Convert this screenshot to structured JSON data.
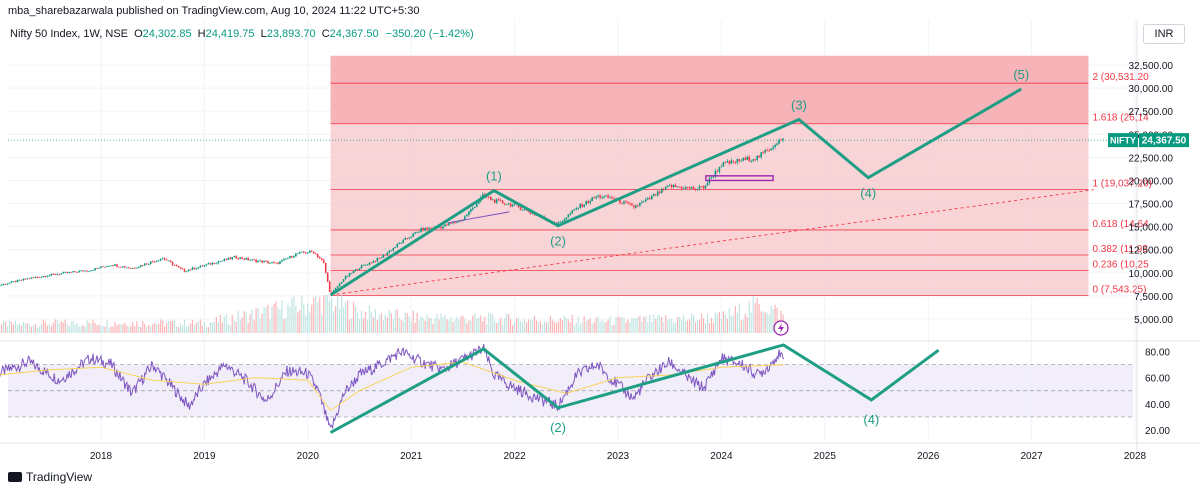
{
  "header": {
    "published": "mba_sharebazarwala published on TradingView.com, Aug 10, 2024 11:22 UTC+5:30",
    "symbol": "Nifty 50 Index, 1W, NSE",
    "o_label": "O",
    "o": "24,302.85",
    "h_label": "H",
    "h": "24,419.75",
    "l_label": "L",
    "l": "23,893.70",
    "c_label": "C",
    "c": "24,367.50",
    "change": "−350.20 (−1.42%)"
  },
  "currency": "INR",
  "footer": {
    "brand": "TradingView"
  },
  "chart_data": [
    {
      "type": "candlestick",
      "panel": "price",
      "symbol_tag": "NIFTY",
      "last_price_label": "24,367.50",
      "last_price": 24367.5,
      "y_ticks": [
        5000,
        7500,
        10000,
        12500,
        15000,
        17500,
        20000,
        22500,
        25000,
        27500,
        30000,
        32500
      ],
      "y_tick_labels": [
        "5,000.00",
        "7,500.00",
        "10,000.00",
        "12,500.00",
        "15,000.00",
        "17,500.00",
        "20,000.00",
        "22,500.00",
        "25,000.00",
        "27,500.00",
        "30,000.00",
        "32,500.00"
      ],
      "x_ticks": [
        "2018",
        "2019",
        "2020",
        "2021",
        "2022",
        "2023",
        "2024",
        "2025",
        "2026",
        "2027",
        "2028"
      ],
      "price_path": [
        [
          2017.0,
          8600
        ],
        [
          2017.3,
          9400
        ],
        [
          2017.6,
          9900
        ],
        [
          2017.9,
          10300
        ],
        [
          2018.1,
          10900
        ],
        [
          2018.3,
          10500
        ],
        [
          2018.6,
          11600
        ],
        [
          2018.8,
          10200
        ],
        [
          2019.0,
          10800
        ],
        [
          2019.3,
          11700
        ],
        [
          2019.5,
          11300
        ],
        [
          2019.7,
          11000
        ],
        [
          2019.9,
          12100
        ],
        [
          2020.05,
          12300
        ],
        [
          2020.15,
          11200
        ],
        [
          2020.22,
          7600
        ],
        [
          2020.35,
          9400
        ],
        [
          2020.5,
          10600
        ],
        [
          2020.7,
          11600
        ],
        [
          2020.9,
          13300
        ],
        [
          2021.1,
          14700
        ],
        [
          2021.3,
          15000
        ],
        [
          2021.5,
          15800
        ],
        [
          2021.7,
          18400
        ],
        [
          2021.8,
          17800
        ],
        [
          2022.0,
          17300
        ],
        [
          2022.2,
          16300
        ],
        [
          2022.42,
          15300
        ],
        [
          2022.6,
          17000
        ],
        [
          2022.8,
          18300
        ],
        [
          2022.95,
          18100
        ],
        [
          2023.15,
          17100
        ],
        [
          2023.3,
          18000
        ],
        [
          2023.5,
          19400
        ],
        [
          2023.75,
          19100
        ],
        [
          2023.83,
          19300
        ],
        [
          2024.0,
          21700
        ],
        [
          2024.2,
          22200
        ],
        [
          2024.35,
          22500
        ],
        [
          2024.45,
          23300
        ],
        [
          2024.55,
          24300
        ],
        [
          2024.61,
          24367.5
        ]
      ],
      "volume_path": [
        [
          2017.0,
          0.25
        ],
        [
          2018.0,
          0.3
        ],
        [
          2019.0,
          0.28
        ],
        [
          2020.2,
          0.95
        ],
        [
          2020.5,
          0.6
        ],
        [
          2021.0,
          0.45
        ],
        [
          2022.0,
          0.4
        ],
        [
          2023.0,
          0.35
        ],
        [
          2024.0,
          0.45
        ],
        [
          2024.4,
          0.85
        ],
        [
          2024.6,
          0.5
        ]
      ],
      "fibonacci": {
        "levels": [
          {
            "ratio": "0",
            "label": "0 (7,543.25)",
            "price": 7543.25
          },
          {
            "ratio": "0.236",
            "label": "0.236 (10,25",
            "price": 10250
          },
          {
            "ratio": "0.382",
            "label": "0.382 (11,93",
            "price": 11930
          },
          {
            "ratio": "0.618",
            "label": "0.618 (14,64",
            "price": 14640
          },
          {
            "ratio": "1",
            "label": "1 (19,037.20)",
            "price": 19037.2
          },
          {
            "ratio": "1.618",
            "label": "1.618 (26,14",
            "price": 26140
          },
          {
            "ratio": "2",
            "label": "2 (30,531.20",
            "price": 30531.2
          }
        ],
        "x_start": 2020.22,
        "x_end": 2027.55,
        "top_price": 33500,
        "colors": {
          "base": "#f7c6c9",
          "upper": "#f5b0b4",
          "line": "#f23645",
          "text": "#f23645"
        }
      },
      "elliott_wave": {
        "color": "#1e9e84",
        "points": [
          {
            "label": "",
            "x": 2020.22,
            "y": 7600
          },
          {
            "label": "(1)",
            "x": 2021.8,
            "y": 18900
          },
          {
            "label": "(2)",
            "x": 2022.42,
            "y": 15100
          },
          {
            "label": "(3)",
            "x": 2024.75,
            "y": 26600
          },
          {
            "label": "(4)",
            "x": 2025.42,
            "y": 20300
          },
          {
            "label": "(5)",
            "x": 2026.9,
            "y": 29900
          }
        ]
      },
      "trendline": {
        "x1": 2020.22,
        "y1": 7600,
        "x2": 2027.6,
        "y2": 19000,
        "color": "#f23645",
        "style": "dashed"
      },
      "small_line": {
        "x1": 2021.35,
        "y1": 15400,
        "x2": 2021.95,
        "y2": 16600,
        "color": "#7e57c2"
      },
      "box": {
        "x1": 2023.85,
        "x2": 2024.5,
        "y_low": 20000,
        "y_high": 20500,
        "color": "#9c27b0"
      }
    },
    {
      "type": "line",
      "panel": "rsi",
      "y_ticks": [
        20,
        40,
        60,
        80
      ],
      "y_tick_labels": [
        "20.00",
        "40.00",
        "60.00",
        "80.00"
      ],
      "bands": {
        "upper": 70,
        "middle": 50,
        "lower": 30
      },
      "rsi_path": [
        [
          2017.0,
          63
        ],
        [
          2017.3,
          72
        ],
        [
          2017.6,
          58
        ],
        [
          2017.9,
          75
        ],
        [
          2018.1,
          70
        ],
        [
          2018.3,
          48
        ],
        [
          2018.5,
          70
        ],
        [
          2018.7,
          52
        ],
        [
          2018.85,
          38
        ],
        [
          2019.0,
          55
        ],
        [
          2019.2,
          70
        ],
        [
          2019.4,
          58
        ],
        [
          2019.6,
          42
        ],
        [
          2019.8,
          65
        ],
        [
          2020.0,
          63
        ],
        [
          2020.1,
          50
        ],
        [
          2020.22,
          19
        ],
        [
          2020.35,
          48
        ],
        [
          2020.5,
          62
        ],
        [
          2020.7,
          70
        ],
        [
          2020.9,
          80
        ],
        [
          2021.1,
          72
        ],
        [
          2021.3,
          66
        ],
        [
          2021.5,
          74
        ],
        [
          2021.7,
          82
        ],
        [
          2021.8,
          62
        ],
        [
          2022.0,
          52
        ],
        [
          2022.2,
          45
        ],
        [
          2022.42,
          38
        ],
        [
          2022.6,
          62
        ],
        [
          2022.8,
          70
        ],
        [
          2022.95,
          58
        ],
        [
          2023.15,
          44
        ],
        [
          2023.3,
          60
        ],
        [
          2023.5,
          72
        ],
        [
          2023.7,
          58
        ],
        [
          2023.83,
          52
        ],
        [
          2024.0,
          75
        ],
        [
          2024.2,
          70
        ],
        [
          2024.35,
          62
        ],
        [
          2024.45,
          68
        ],
        [
          2024.55,
          78
        ],
        [
          2024.61,
          72
        ]
      ],
      "signal_path": [
        [
          2017.0,
          62
        ],
        [
          2017.5,
          66
        ],
        [
          2018.0,
          68
        ],
        [
          2018.5,
          58
        ],
        [
          2019.0,
          55
        ],
        [
          2019.5,
          60
        ],
        [
          2020.0,
          58
        ],
        [
          2020.22,
          35
        ],
        [
          2020.5,
          50
        ],
        [
          2021.0,
          68
        ],
        [
          2021.5,
          72
        ],
        [
          2022.0,
          58
        ],
        [
          2022.5,
          48
        ],
        [
          2023.0,
          60
        ],
        [
          2023.5,
          62
        ],
        [
          2024.0,
          68
        ],
        [
          2024.6,
          70
        ]
      ],
      "elliott_wave": {
        "points": [
          {
            "label": "",
            "x": 2020.22,
            "y": 18
          },
          {
            "label": "",
            "x": 2021.7,
            "y": 82
          },
          {
            "label": "(2)",
            "x": 2022.42,
            "y": 37
          },
          {
            "label": "",
            "x": 2024.6,
            "y": 85
          },
          {
            "label": "(4)",
            "x": 2025.45,
            "y": 43
          },
          {
            "label": "",
            "x": 2026.1,
            "y": 81
          }
        ]
      }
    }
  ]
}
